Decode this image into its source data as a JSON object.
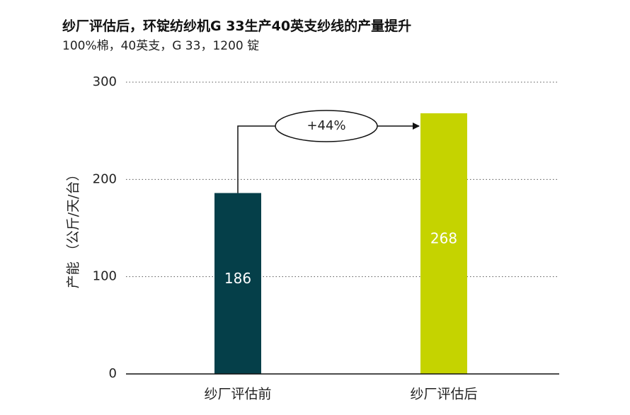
{
  "title": "纱厂评估后，环锭纺纱机G 33生产40英支纱线的产量提升",
  "subtitle": "100%棉，40英支，G 33，1200 锭",
  "chart_data": {
    "type": "bar",
    "categories": [
      "纱厂评估前",
      "纱厂评估后"
    ],
    "values": [
      186,
      268
    ],
    "value_labels": [
      "186",
      "268"
    ],
    "colors": [
      "#053f49",
      "#c5d300"
    ],
    "ylabel": "产能 （公斤/天/台）",
    "ylim": [
      0,
      300
    ],
    "yticks": [
      0,
      100,
      200,
      300
    ],
    "grid": true,
    "annotation": "+44%"
  }
}
